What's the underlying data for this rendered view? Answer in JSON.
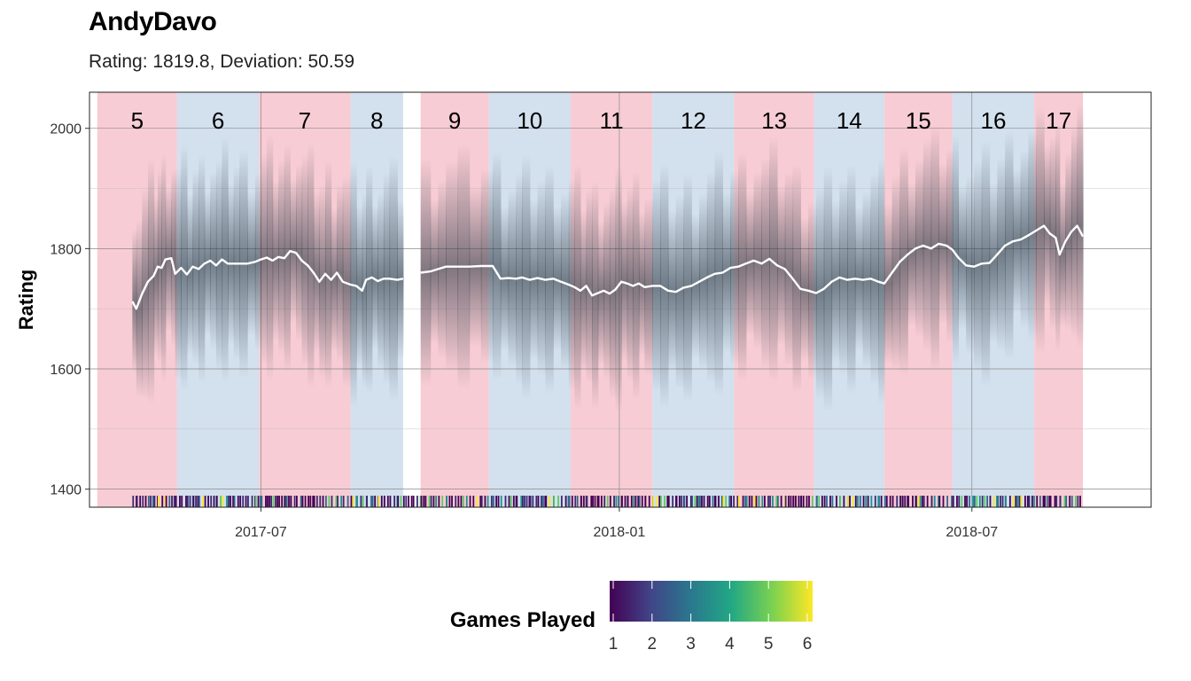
{
  "title": "AndyDavo",
  "subtitle": "Rating: 1819.8, Deviation: 50.59",
  "colors": {
    "season_odd": "#f8ccd4",
    "season_even": "#d3e0ee",
    "rating_line": "#ffffff",
    "band": "#2e3a44"
  },
  "chart_data": {
    "type": "line",
    "title": "AndyDavo",
    "subtitle": "Rating: 1819.8, Deviation: 50.59",
    "xlabel": "",
    "ylabel": "Rating",
    "x_range": [
      "2017-04-04",
      "2018-10-01"
    ],
    "ylim": [
      1370,
      2060
    ],
    "y_ticks": [
      1400,
      1600,
      1800,
      2000
    ],
    "x_ticks": [
      {
        "date": "2017-07-01",
        "label": "2017-07"
      },
      {
        "date": "2018-01-01",
        "label": "2018-01"
      },
      {
        "date": "2018-07-01",
        "label": "2018-07"
      }
    ],
    "grid": true,
    "seasons": [
      {
        "label": "5",
        "start": "2017-04-08",
        "end": "2017-05-19",
        "color": "pink"
      },
      {
        "label": "6",
        "start": "2017-05-19",
        "end": "2017-06-30",
        "color": "blue"
      },
      {
        "label": "7",
        "start": "2017-06-30",
        "end": "2017-08-16",
        "color": "pink"
      },
      {
        "label": "8",
        "start": "2017-08-16",
        "end": "2017-09-12",
        "color": "blue"
      },
      {
        "label": "9",
        "start": "2017-09-21",
        "end": "2017-10-26",
        "color": "pink"
      },
      {
        "label": "10",
        "start": "2017-10-26",
        "end": "2017-12-07",
        "color": "blue"
      },
      {
        "label": "11",
        "start": "2017-12-07",
        "end": "2018-01-18",
        "color": "pink"
      },
      {
        "label": "12",
        "start": "2018-01-18",
        "end": "2018-03-01",
        "color": "blue"
      },
      {
        "label": "13",
        "start": "2018-03-01",
        "end": "2018-04-11",
        "color": "pink"
      },
      {
        "label": "14",
        "start": "2018-04-11",
        "end": "2018-05-17",
        "color": "blue"
      },
      {
        "label": "15",
        "start": "2018-05-17",
        "end": "2018-06-21",
        "color": "pink"
      },
      {
        "label": "16",
        "start": "2018-06-21",
        "end": "2018-08-02",
        "color": "blue"
      },
      {
        "label": "17",
        "start": "2018-08-02",
        "end": "2018-08-27",
        "color": "pink"
      }
    ],
    "series": [
      {
        "name": "Rating",
        "points": [
          [
            "2017-04-26",
            1712
          ],
          [
            "2017-04-28",
            1700
          ],
          [
            "2017-05-01",
            1725
          ],
          [
            "2017-05-04",
            1745
          ],
          [
            "2017-05-07",
            1755
          ],
          [
            "2017-05-09",
            1770
          ],
          [
            "2017-05-11",
            1768
          ],
          [
            "2017-05-13",
            1782
          ],
          [
            "2017-05-16",
            1784
          ],
          [
            "2017-05-18",
            1758
          ],
          [
            "2017-05-21",
            1768
          ],
          [
            "2017-05-24",
            1757
          ],
          [
            "2017-05-27",
            1770
          ],
          [
            "2017-05-30",
            1766
          ],
          [
            "2017-06-02",
            1775
          ],
          [
            "2017-06-05",
            1780
          ],
          [
            "2017-06-08",
            1772
          ],
          [
            "2017-06-11",
            1782
          ],
          [
            "2017-06-14",
            1775
          ],
          [
            "2017-06-17",
            1775
          ],
          [
            "2017-06-20",
            1775
          ],
          [
            "2017-06-24",
            1775
          ],
          [
            "2017-06-28",
            1778
          ],
          [
            "2017-07-01",
            1782
          ],
          [
            "2017-07-04",
            1785
          ],
          [
            "2017-07-07",
            1780
          ],
          [
            "2017-07-10",
            1786
          ],
          [
            "2017-07-13",
            1784
          ],
          [
            "2017-07-16",
            1796
          ],
          [
            "2017-07-19",
            1793
          ],
          [
            "2017-07-22",
            1780
          ],
          [
            "2017-07-25",
            1772
          ],
          [
            "2017-07-28",
            1760
          ],
          [
            "2017-07-31",
            1745
          ],
          [
            "2017-08-03",
            1758
          ],
          [
            "2017-08-06",
            1748
          ],
          [
            "2017-08-09",
            1760
          ],
          [
            "2017-08-12",
            1745
          ],
          [
            "2017-08-16",
            1740
          ],
          [
            "2017-08-19",
            1738
          ],
          [
            "2017-08-22",
            1730
          ],
          [
            "2017-08-24",
            1748
          ],
          [
            "2017-08-27",
            1752
          ],
          [
            "2017-08-30",
            1746
          ],
          [
            "2017-09-02",
            1750
          ],
          [
            "2017-09-05",
            1750
          ],
          [
            "2017-09-09",
            1748
          ],
          [
            "2017-09-12",
            1750
          ],
          [
            "2017-09-21",
            1760
          ],
          [
            "2017-09-26",
            1762
          ],
          [
            "2017-09-30",
            1766
          ],
          [
            "2017-10-04",
            1770
          ],
          [
            "2017-10-10",
            1770
          ],
          [
            "2017-10-16",
            1770
          ],
          [
            "2017-10-22",
            1771
          ],
          [
            "2017-10-28",
            1771
          ],
          [
            "2017-11-01",
            1750
          ],
          [
            "2017-11-05",
            1751
          ],
          [
            "2017-11-09",
            1750
          ],
          [
            "2017-11-12",
            1752
          ],
          [
            "2017-11-16",
            1748
          ],
          [
            "2017-11-20",
            1751
          ],
          [
            "2017-11-24",
            1748
          ],
          [
            "2017-11-28",
            1750
          ],
          [
            "2017-12-02",
            1745
          ],
          [
            "2017-12-06",
            1740
          ],
          [
            "2017-12-09",
            1736
          ],
          [
            "2017-12-12",
            1730
          ],
          [
            "2017-12-15",
            1738
          ],
          [
            "2017-12-18",
            1722
          ],
          [
            "2017-12-21",
            1726
          ],
          [
            "2017-12-24",
            1730
          ],
          [
            "2017-12-27",
            1725
          ],
          [
            "2017-12-30",
            1732
          ],
          [
            "2018-01-02",
            1745
          ],
          [
            "2018-01-05",
            1742
          ],
          [
            "2018-01-08",
            1738
          ],
          [
            "2018-01-11",
            1742
          ],
          [
            "2018-01-14",
            1736
          ],
          [
            "2018-01-18",
            1738
          ],
          [
            "2018-01-22",
            1738
          ],
          [
            "2018-01-26",
            1730
          ],
          [
            "2018-01-30",
            1728
          ],
          [
            "2018-02-03",
            1735
          ],
          [
            "2018-02-07",
            1738
          ],
          [
            "2018-02-11",
            1745
          ],
          [
            "2018-02-15",
            1752
          ],
          [
            "2018-02-19",
            1758
          ],
          [
            "2018-02-23",
            1760
          ],
          [
            "2018-02-27",
            1768
          ],
          [
            "2018-03-03",
            1770
          ],
          [
            "2018-03-07",
            1775
          ],
          [
            "2018-03-11",
            1780
          ],
          [
            "2018-03-15",
            1775
          ],
          [
            "2018-03-19",
            1783
          ],
          [
            "2018-03-23",
            1772
          ],
          [
            "2018-03-27",
            1766
          ],
          [
            "2018-03-31",
            1750
          ],
          [
            "2018-04-04",
            1733
          ],
          [
            "2018-04-08",
            1730
          ],
          [
            "2018-04-12",
            1726
          ],
          [
            "2018-04-16",
            1733
          ],
          [
            "2018-04-20",
            1745
          ],
          [
            "2018-04-24",
            1752
          ],
          [
            "2018-04-28",
            1748
          ],
          [
            "2018-05-02",
            1750
          ],
          [
            "2018-05-06",
            1748
          ],
          [
            "2018-05-10",
            1750
          ],
          [
            "2018-05-14",
            1745
          ],
          [
            "2018-05-17",
            1742
          ],
          [
            "2018-05-21",
            1760
          ],
          [
            "2018-05-25",
            1778
          ],
          [
            "2018-05-29",
            1790
          ],
          [
            "2018-06-02",
            1800
          ],
          [
            "2018-06-06",
            1805
          ],
          [
            "2018-06-10",
            1800
          ],
          [
            "2018-06-14",
            1808
          ],
          [
            "2018-06-18",
            1805
          ],
          [
            "2018-06-21",
            1798
          ],
          [
            "2018-06-24",
            1785
          ],
          [
            "2018-06-28",
            1772
          ],
          [
            "2018-07-02",
            1770
          ],
          [
            "2018-07-06",
            1775
          ],
          [
            "2018-07-10",
            1776
          ],
          [
            "2018-07-14",
            1790
          ],
          [
            "2018-07-18",
            1805
          ],
          [
            "2018-07-22",
            1812
          ],
          [
            "2018-07-26",
            1815
          ],
          [
            "2018-07-30",
            1822
          ],
          [
            "2018-08-03",
            1830
          ],
          [
            "2018-08-07",
            1838
          ],
          [
            "2018-08-10",
            1825
          ],
          [
            "2018-08-13",
            1818
          ],
          [
            "2018-08-15",
            1790
          ],
          [
            "2018-08-18",
            1812
          ],
          [
            "2018-08-21",
            1828
          ],
          [
            "2018-08-24",
            1838
          ],
          [
            "2018-08-27",
            1820
          ]
        ]
      }
    ],
    "legend": {
      "title": "Games Played",
      "position": "bottom",
      "type": "colorbar",
      "palette": "viridis",
      "range": [
        1,
        6
      ],
      "ticks": [
        "1",
        "2",
        "3",
        "4",
        "5",
        "6"
      ]
    }
  }
}
